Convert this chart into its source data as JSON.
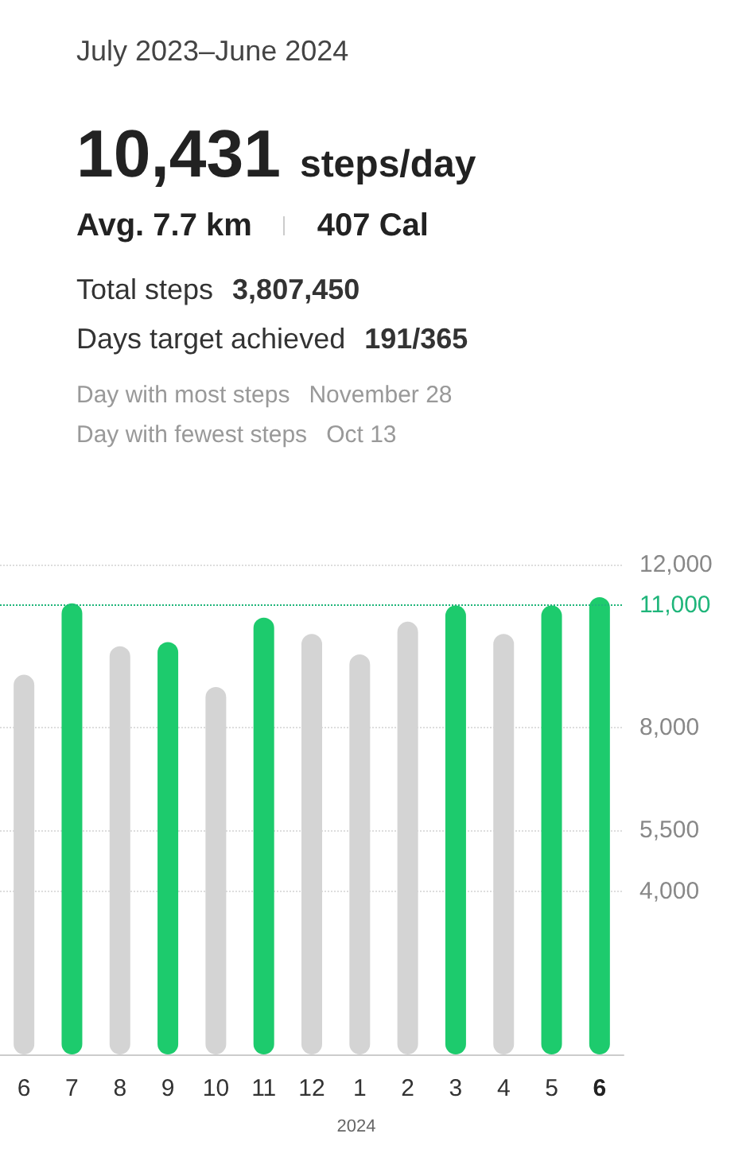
{
  "chart_data": {
    "type": "bar",
    "title": "July 2023–June 2024",
    "annotations": [
      "10,431",
      "steps/day",
      "Avg. 7.7 km",
      "407 Cal",
      "Total steps",
      "3,807,450",
      "Days target achieved",
      "191/365",
      "Day with most steps",
      "November 28",
      "Day with fewest steps",
      "Oct 13"
    ],
    "xlabel": "2024",
    "categories": [
      "6",
      "7",
      "8",
      "9",
      "10",
      "11",
      "12",
      "1",
      "2",
      "3",
      "4",
      "5",
      "6"
    ],
    "values": [
      9300,
      11050,
      10000,
      10100,
      9000,
      10700,
      10300,
      9800,
      10600,
      11000,
      10300,
      11000,
      11200
    ],
    "colors": [
      "#d4d4d4",
      "#1dcb6d",
      "#d4d4d4",
      "#1dcb6d",
      "#d4d4d4",
      "#1dcb6d",
      "#d4d4d4",
      "#d4d4d4",
      "#d4d4d4",
      "#1dcb6d",
      "#d4d4d4",
      "#1dcb6d",
      "#1dcb6d"
    ],
    "ylim": [
      0,
      12000
    ],
    "yticks": [
      {
        "value": 4000,
        "label": "4,000"
      },
      {
        "value": 5500,
        "label": "5,500"
      },
      {
        "value": 8000,
        "label": "8,000"
      },
      {
        "value": 12000,
        "label": "12,000"
      }
    ],
    "grid": "y",
    "ref_lines": [
      {
        "axis": "y",
        "value": 11000,
        "label": "11,000",
        "color": "#1fb57a",
        "line_style": "dotted"
      }
    ]
  }
}
